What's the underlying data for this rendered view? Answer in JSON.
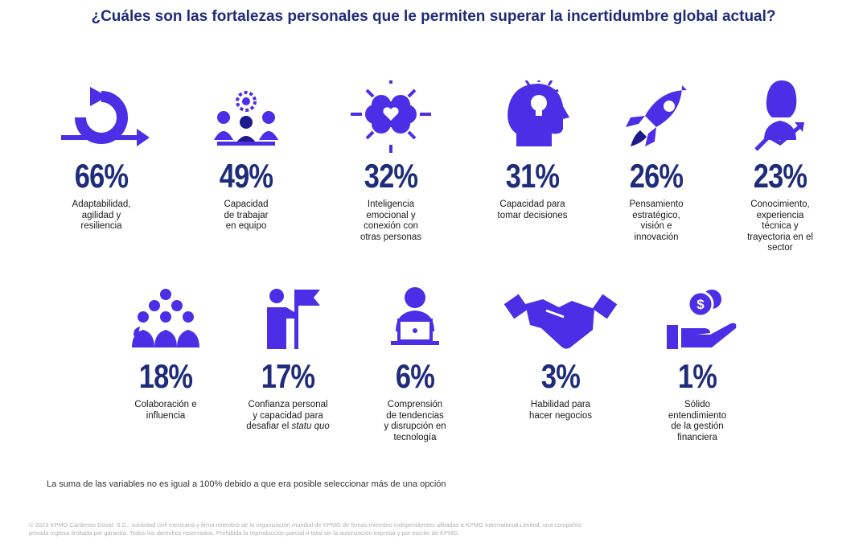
{
  "title": "¿Cuáles son las fortalezas personales que le permiten superar la incertidumbre global actual?",
  "colors": {
    "icon_main": "#4b2ee6",
    "icon_dark": "#1e1a8c",
    "title": "#1e2c7a",
    "percent": "#1e2c7a"
  },
  "row1": [
    {
      "percent": "66%",
      "label": [
        "Adaptabilidad,",
        "agilidad y",
        "resiliencia"
      ],
      "icon": "cycle-arrow-icon"
    },
    {
      "percent": "49%",
      "label": [
        "Capacidad",
        "de trabajar",
        "en equipo"
      ],
      "icon": "team-gear-icon"
    },
    {
      "percent": "32%",
      "label": [
        "Inteligencia",
        "emocional y",
        "conexión con",
        "otras personas"
      ],
      "icon": "heart-flower-icon"
    },
    {
      "percent": "31%",
      "label": [
        "Capacidad para",
        "tomar decisiones"
      ],
      "icon": "head-lightbulb-icon"
    },
    {
      "percent": "26%",
      "label": [
        "Pensamiento",
        "estratégico,",
        "visión e",
        "innovación"
      ],
      "icon": "rocket-icon"
    },
    {
      "percent": "23%",
      "label": [
        "Conocimiento,",
        "experiencia",
        "técnica y",
        "trayectoria en el",
        "sector"
      ],
      "icon": "woman-growth-icon"
    }
  ],
  "row2": [
    {
      "percent": "18%",
      "label": [
        "Colaboración e",
        "influencia"
      ],
      "icon": "group-icon"
    },
    {
      "percent": "17%",
      "label": [
        "Confianza personal",
        "y capacidad para",
        "desafiar el"
      ],
      "label_italic": "statu quo",
      "icon": "person-flag-icon"
    },
    {
      "percent": "6%",
      "label": [
        "Comprensión",
        "de tendencias",
        "y disrupción en",
        "tecnología"
      ],
      "icon": "laptop-user-icon"
    },
    {
      "percent": "3%",
      "label": [
        "Habilidad para",
        "hacer negocios"
      ],
      "icon": "handshake-icon"
    },
    {
      "percent": "1%",
      "label": [
        "Sólido",
        "entendimiento",
        "de la gestión",
        "financiera"
      ],
      "icon": "hand-coins-icon"
    }
  ],
  "footnote": "La suma de las variables no es igual a 100% debido a que era posible seleccionar más de una opción",
  "copyright": "© 2023 KPMG Cárdenas Dosal, S.C., sociedad civil mexicana y firma miembro de la organización mundial de KPMG de firmas miembro independientes afiliadas a KPMG International Limited, una compañía privada inglesa limitada por garantía. Todos los derechos reservados. Prohibida la reproducción parcial o total sin la autorización expresa y por escrito de KPMG."
}
